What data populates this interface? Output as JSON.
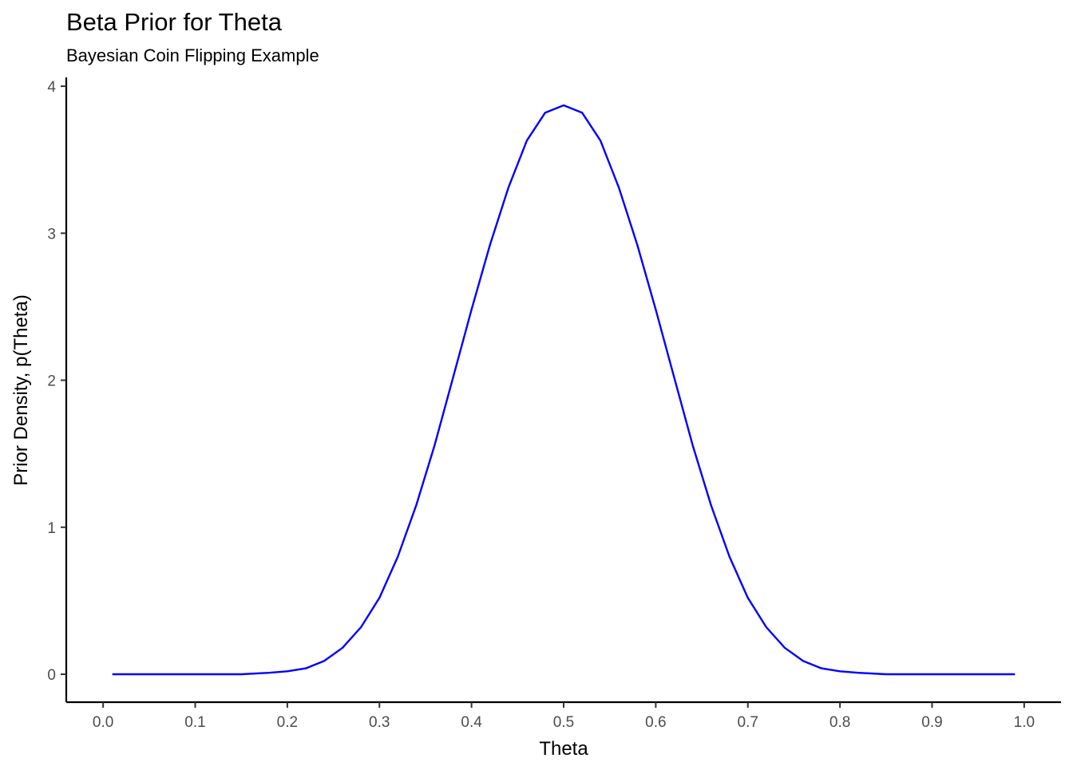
{
  "chart_data": {
    "type": "line",
    "title": "Beta Prior for Theta",
    "subtitle": "Bayesian Coin Flipping Example",
    "xlabel": "Theta",
    "ylabel": "Prior Density, p(Theta)",
    "xlim": [
      -0.04,
      1.04
    ],
    "ylim": [
      -0.19,
      4.06
    ],
    "x_ticks": [
      "0.0",
      "0.1",
      "0.2",
      "0.3",
      "0.4",
      "0.5",
      "0.6",
      "0.7",
      "0.8",
      "0.9",
      "1.0"
    ],
    "y_ticks": [
      "0",
      "1",
      "2",
      "3",
      "4"
    ],
    "grid": false,
    "legend": "none",
    "series": [
      {
        "color": "#0000FF",
        "x": [
          0.01,
          0.05,
          0.1,
          0.15,
          0.18,
          0.2,
          0.22,
          0.24,
          0.26,
          0.28,
          0.3,
          0.32,
          0.34,
          0.36,
          0.38,
          0.4,
          0.42,
          0.44,
          0.46,
          0.48,
          0.5,
          0.52,
          0.54,
          0.56,
          0.58,
          0.6,
          0.62,
          0.64,
          0.66,
          0.68,
          0.7,
          0.72,
          0.74,
          0.76,
          0.78,
          0.8,
          0.82,
          0.85,
          0.9,
          0.95,
          0.99
        ],
        "y": [
          0.0,
          0.0,
          0.0,
          0.0,
          0.01,
          0.02,
          0.04,
          0.09,
          0.18,
          0.32,
          0.52,
          0.8,
          1.15,
          1.56,
          2.02,
          2.48,
          2.92,
          3.31,
          3.63,
          3.82,
          3.87,
          3.82,
          3.63,
          3.31,
          2.92,
          2.48,
          2.02,
          1.56,
          1.15,
          0.8,
          0.52,
          0.32,
          0.18,
          0.09,
          0.04,
          0.02,
          0.01,
          0.0,
          0.0,
          0.0,
          0.0
        ]
      }
    ]
  }
}
